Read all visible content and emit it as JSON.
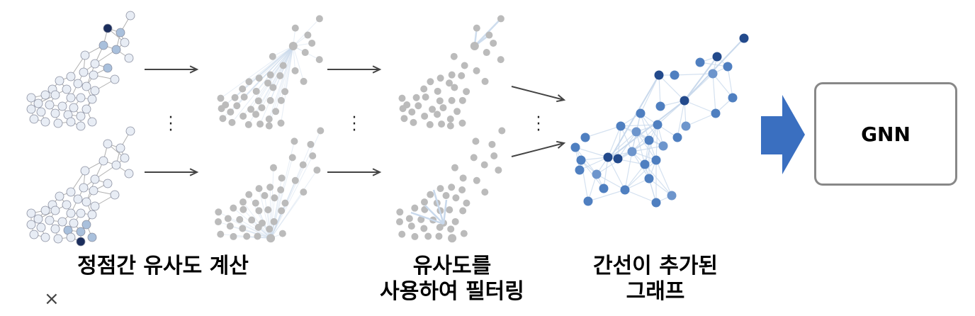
{
  "captions": {
    "step1": [
      "정점간 유사도 계산"
    ],
    "step2": [
      "유사도를",
      "사용하여 필터링"
    ],
    "step3": [
      "간선이 추가된",
      "그래프"
    ]
  },
  "model": {
    "label": "GNN"
  },
  "close_symbol": "×",
  "colors": {
    "arrow": "#444444",
    "big_arrow": "#3a6fc0",
    "gray_node": "#bbbbbb",
    "light_node": "#e8edf5",
    "mid_node": "#a9c0dc",
    "dark_node": "#1b2d5c",
    "blue_node": "#4f7fc0",
    "faint_edge": "#c9d9ec",
    "box_border": "#888888"
  },
  "icons": [
    "right-arrow-icon",
    "vertical-ellipsis-icon",
    "block-arrow-icon",
    "close-icon"
  ]
}
